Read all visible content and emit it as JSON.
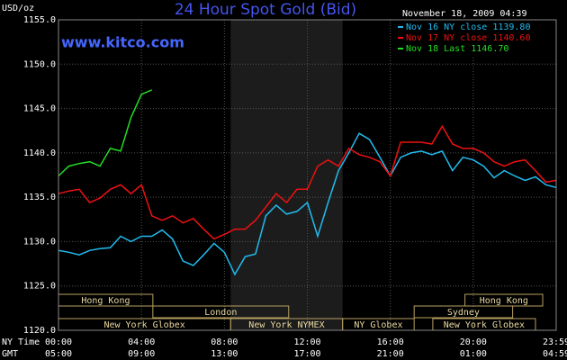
{
  "chart_data": {
    "type": "line",
    "title": "24 Hour Spot Gold (Bid)",
    "site": "www.kitco.com",
    "timestamp": "November 18, 2009 04:39",
    "y_label": "USD/oz",
    "x_label": "NY Time",
    "x2_label": "GMT",
    "xlim": [
      0,
      24
    ],
    "ylim": [
      1120,
      1155
    ],
    "xticks": [
      {
        "value": 0,
        "label": "00:00"
      },
      {
        "value": 4,
        "label": "04:00"
      },
      {
        "value": 8,
        "label": "08:00"
      },
      {
        "value": 12,
        "label": "12:00"
      },
      {
        "value": 16,
        "label": "16:00"
      },
      {
        "value": 20,
        "label": "20:00"
      },
      {
        "value": 24,
        "label": "23:59"
      }
    ],
    "x2ticks": [
      {
        "value": 0,
        "label": "05:00"
      },
      {
        "value": 4,
        "label": "09:00"
      },
      {
        "value": 8,
        "label": "13:00"
      },
      {
        "value": 12,
        "label": "17:00"
      },
      {
        "value": 16,
        "label": "21:00"
      },
      {
        "value": 20,
        "label": "01:00"
      },
      {
        "value": 24,
        "label": "04:59"
      }
    ],
    "yticks": [
      {
        "value": 1120,
        "label": "1120.0"
      },
      {
        "value": 1125,
        "label": "1125.0"
      },
      {
        "value": 1130,
        "label": "1130.0"
      },
      {
        "value": 1135,
        "label": "1135.0"
      },
      {
        "value": 1140,
        "label": "1140.0"
      },
      {
        "value": 1145,
        "label": "1145.0"
      },
      {
        "value": 1150,
        "label": "1150.0"
      },
      {
        "value": 1155,
        "label": "1155.0"
      }
    ],
    "grid": true,
    "legend": "top-right",
    "highlight": [
      8.3,
      13.7
    ],
    "x": [
      0,
      0.5,
      1,
      1.5,
      2,
      2.5,
      3,
      3.5,
      4,
      4.5,
      5,
      5.5,
      6,
      6.5,
      7,
      7.5,
      8,
      8.5,
      9,
      9.5,
      10,
      10.5,
      11,
      11.5,
      12,
      12.5,
      13,
      13.5,
      14,
      14.5,
      15,
      15.5,
      16,
      16.5,
      17,
      17.5,
      18,
      18.5,
      19,
      19.5,
      20,
      20.5,
      21,
      21.5,
      22,
      22.5,
      23,
      23.5,
      24
    ],
    "series": [
      {
        "name": "Nov 16 NY close 1139.80",
        "color": "#22bbee",
        "values": [
          1129.0,
          1128.8,
          1128.5,
          1129.0,
          1129.2,
          1129.3,
          1130.6,
          1130.0,
          1130.6,
          1130.6,
          1131.3,
          1130.3,
          1127.8,
          1127.3,
          1128.5,
          1129.8,
          1128.8,
          1126.3,
          1128.3,
          1128.6,
          1132.9,
          1134.1,
          1133.1,
          1133.4,
          1134.4,
          1130.6,
          1134.4,
          1138.0,
          1140.0,
          1142.2,
          1141.5,
          1139.5,
          1137.4,
          1139.5,
          1140.0,
          1140.2,
          1139.8,
          1140.2,
          1138.0,
          1139.5,
          1139.2,
          1138.5,
          1137.2,
          1138.0,
          1137.4,
          1136.9,
          1137.3,
          1136.4,
          1136.1
        ]
      },
      {
        "name": "Nov 17 NY close 1140.60",
        "color": "#ee1111",
        "values": [
          1135.4,
          1135.7,
          1135.9,
          1134.4,
          1134.9,
          1135.9,
          1136.4,
          1135.4,
          1136.4,
          1132.9,
          1132.4,
          1132.9,
          1132.1,
          1132.6,
          1131.4,
          1130.3,
          1130.8,
          1131.4,
          1131.4,
          1132.4,
          1133.9,
          1135.4,
          1134.4,
          1135.9,
          1135.9,
          1138.5,
          1139.2,
          1138.5,
          1140.5,
          1139.8,
          1139.5,
          1139.0,
          1137.4,
          1141.2,
          1141.2,
          1141.2,
          1141.0,
          1143.0,
          1141.0,
          1140.5,
          1140.5,
          1140.0,
          1139.0,
          1138.5,
          1139.0,
          1139.2,
          1138.0,
          1136.7,
          1136.9
        ]
      },
      {
        "name": "Nov 18 Last 1146.70",
        "color": "#22dd22",
        "values": [
          1137.4,
          1138.5,
          1138.8,
          1139.0,
          1138.5,
          1140.5,
          1140.2,
          1144.0,
          1146.6,
          1147.1,
          null,
          null,
          null,
          null,
          null,
          null,
          null,
          null,
          null,
          null,
          null,
          null,
          null,
          null,
          null,
          null,
          null,
          null,
          null,
          null,
          null,
          null,
          null,
          null,
          null,
          null,
          null,
          null,
          null,
          null,
          null,
          null,
          null,
          null,
          null,
          null,
          null,
          null,
          null
        ]
      }
    ],
    "session_lanes": [
      [
        {
          "label": "Hong Kong",
          "start": 0,
          "end": 4.55
        },
        {
          "label": "Hong Kong",
          "start": 19.6,
          "end": 23.35
        }
      ],
      [
        {
          "label": "London",
          "start": 4.55,
          "end": 11.1
        },
        {
          "label": "Sydney",
          "start": 17.15,
          "end": 21.9
        }
      ],
      [
        {
          "label": "New York Globex",
          "start": 0,
          "end": 8.3
        },
        {
          "label": "New York NYMEX",
          "start": 8.3,
          "end": 13.7
        },
        {
          "label": "NY Globex",
          "start": 13.7,
          "end": 17.15
        },
        {
          "label": "New York Globex",
          "start": 18.05,
          "end": 23
        }
      ]
    ]
  }
}
